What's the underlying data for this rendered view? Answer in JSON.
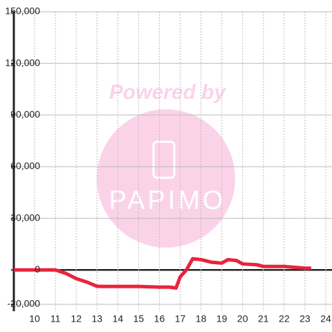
{
  "chart_data": {
    "type": "line",
    "watermark": {
      "top": "Powered by",
      "logo": "PAPIMO"
    },
    "x": [
      9,
      11,
      11.5,
      12,
      12.5,
      13,
      13.3,
      14,
      15,
      16,
      16.5,
      16.8,
      17,
      17.3,
      17.6,
      18,
      18.5,
      19,
      19.3,
      19.7,
      20,
      20.7,
      21,
      22,
      22.5,
      23,
      23.3
    ],
    "series": [
      {
        "color": "#e8243c",
        "values": [
          0,
          0,
          -2000,
          -5000,
          -7000,
          -9500,
          -9600,
          -9600,
          -9600,
          -10000,
          -10000,
          -10500,
          -4000,
          0,
          6500,
          6000,
          4500,
          4000,
          6000,
          5500,
          3500,
          3000,
          2000,
          2000,
          1500,
          1000,
          1000
        ]
      }
    ],
    "xlim": [
      9,
      24.3
    ],
    "ylim": [
      -24000,
      150000
    ],
    "xticks": [
      10,
      11,
      12,
      13,
      14,
      15,
      16,
      17,
      18,
      19,
      20,
      21,
      22,
      23,
      24
    ],
    "yticks": [
      {
        "value": -20000,
        "label": "-20,000"
      },
      0,
      {
        "value": 30000,
        "label": "30,000"
      },
      {
        "value": 60000,
        "label": "60,000"
      },
      {
        "value": 90000,
        "label": "90,000"
      },
      {
        "value": 120000,
        "label": "120,000"
      },
      {
        "value": 150000,
        "label": "150,000"
      }
    ],
    "grid": true
  }
}
